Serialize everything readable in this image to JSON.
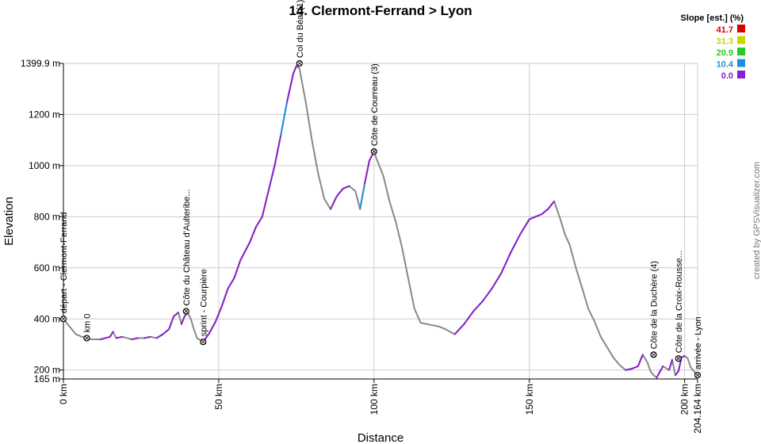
{
  "chart_data": {
    "type": "line",
    "title": "14. Clermont-Ferrand > Lyon",
    "xlabel": "Distance",
    "ylabel": "Elevation",
    "xlim": [
      0,
      204.164
    ],
    "ylim": [
      165,
      1399.9
    ],
    "x_unit": "km",
    "y_unit": "m",
    "x_ticks": [
      "0 km",
      "50 km",
      "100 km",
      "150 km",
      "200 km",
      "204.164 km"
    ],
    "x_tick_values": [
      0,
      50,
      100,
      150,
      200,
      204.164
    ],
    "y_ticks": [
      "165 m",
      "200 m",
      "400 m",
      "600 m",
      "800 m",
      "1000 m",
      "1200 m",
      "1399.9 m"
    ],
    "y_tick_values": [
      165,
      200,
      400,
      600,
      800,
      1000,
      1200,
      1399.9
    ],
    "grid": true,
    "credit": "created by GPSVisualizer.com",
    "legend": {
      "title": "Slope [est.] (%)",
      "placement": "top-right",
      "entries": [
        {
          "label": "41.7",
          "color": "#dd0000"
        },
        {
          "label": "31.3",
          "color": "#c8d400"
        },
        {
          "label": "20.9",
          "color": "#22cc22"
        },
        {
          "label": "10.4",
          "color": "#1f8fd8"
        },
        {
          "label": "0.0",
          "color": "#8822cc"
        }
      ]
    },
    "series": [
      {
        "x": [
          0,
          2,
          4,
          6,
          7.5,
          9,
          12,
          15,
          16,
          17,
          19,
          22,
          24,
          26,
          28,
          30,
          32,
          34,
          35.5,
          37,
          38,
          39,
          40,
          41,
          42,
          43,
          45,
          47,
          49,
          51,
          53,
          55,
          57,
          60,
          62,
          64,
          66,
          68,
          70,
          72,
          74,
          75,
          76,
          78,
          80,
          82,
          84,
          86,
          88,
          90,
          92,
          94,
          95.5,
          97,
          98.5,
          100,
          101,
          103,
          105,
          107,
          109,
          111,
          113,
          115,
          117,
          119,
          121,
          123,
          126,
          129,
          132,
          135,
          138,
          141,
          144,
          147,
          150,
          152,
          154,
          156,
          158,
          160,
          161.5,
          163,
          165,
          167,
          169,
          171,
          173,
          175,
          177,
          179,
          181,
          183,
          185,
          186.5,
          188,
          189,
          190,
          191,
          193,
          195,
          196,
          197,
          198,
          199,
          200,
          201,
          202,
          203,
          204.164
        ],
        "y": [
          400,
          370,
          340,
          330,
          325,
          320,
          320,
          330,
          350,
          325,
          330,
          320,
          325,
          325,
          330,
          325,
          340,
          360,
          410,
          425,
          380,
          410,
          425,
          400,
          360,
          325,
          310,
          345,
          390,
          450,
          520,
          560,
          630,
          700,
          760,
          800,
          900,
          1000,
          1120,
          1250,
          1360,
          1390,
          1380,
          1250,
          1100,
          970,
          870,
          830,
          880,
          910,
          920,
          900,
          830,
          930,
          1020,
          1055,
          1020,
          960,
          860,
          780,
          680,
          560,
          440,
          385,
          380,
          375,
          370,
          360,
          340,
          380,
          430,
          470,
          520,
          580,
          660,
          730,
          790,
          800,
          810,
          830,
          860,
          790,
          730,
          690,
          600,
          520,
          440,
          390,
          330,
          290,
          250,
          220,
          200,
          205,
          215,
          260,
          230,
          195,
          180,
          170,
          215,
          200,
          240,
          180,
          195,
          250,
          255,
          245,
          210,
          195,
          180
        ]
      }
    ],
    "waypoints": [
      {
        "x": 0,
        "y": 400,
        "label": "départ - Clermont-Ferrand"
      },
      {
        "x": 7.5,
        "y": 325,
        "label": "km 0"
      },
      {
        "x": 39.5,
        "y": 430,
        "label": "Côte du Château d'Aulteribe..."
      },
      {
        "x": 45,
        "y": 310,
        "label": "sprint - Courpière"
      },
      {
        "x": 76,
        "y": 1399.9,
        "label": "Col du Béal (1)"
      },
      {
        "x": 100,
        "y": 1055,
        "label": "Côte de Courreau (3)"
      },
      {
        "x": 190,
        "y": 260,
        "label": "Côte de la Duchère (4)"
      },
      {
        "x": 198,
        "y": 245,
        "label": "Côte de la Croix-Rousse..."
      },
      {
        "x": 204.164,
        "y": 180,
        "label": "arrivée - Lyon"
      }
    ]
  }
}
